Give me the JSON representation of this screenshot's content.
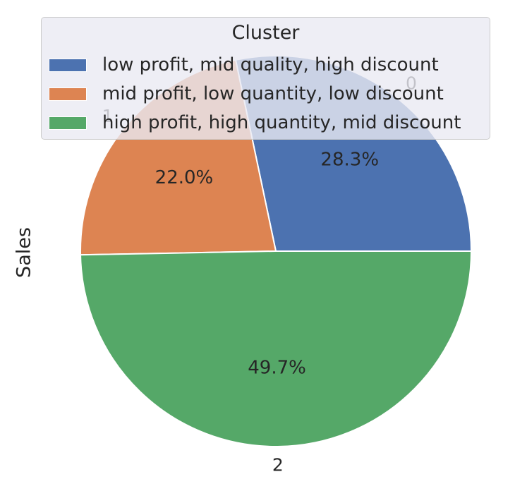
{
  "chart_data": {
    "type": "pie",
    "ylabel": "Sales",
    "categories": [
      "0",
      "1",
      "2"
    ],
    "values": [
      28.3,
      22.0,
      49.7
    ],
    "percent_labels": [
      "28.3%",
      "22.0%",
      "49.7%"
    ],
    "colors": [
      "#4c72b0",
      "#dd8452",
      "#55a868"
    ],
    "start_angle_deg": 0,
    "direction": "counterclockwise",
    "legend": {
      "title": "Cluster",
      "placement": "top-center",
      "entries": [
        "low profit, mid quality, high discount",
        "mid profit, low quantity, low discount",
        "high profit, high quantity, mid discount"
      ]
    }
  }
}
